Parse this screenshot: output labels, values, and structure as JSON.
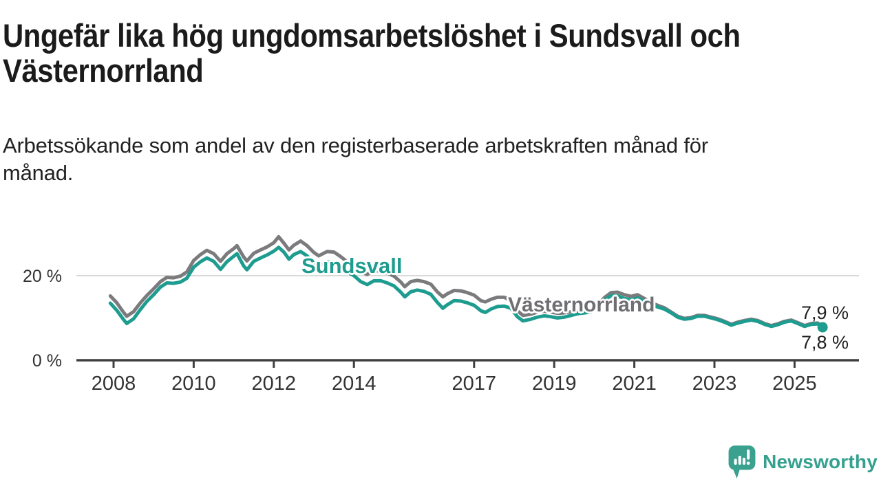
{
  "header": {
    "title": "Ungefär lika hög ungdomsarbetslöshet i Sundsvall och\nVästernorrland",
    "subtitle": "Arbetssökande som andel av den registerbaserade arbetskraften månad för\nmånad."
  },
  "footer": {
    "brand": "Newsworthy",
    "brand_color": "#35a08f"
  },
  "colors": {
    "sundsvall": "#1d9c8f",
    "vasternorrland": "#7b7b7e",
    "axis": "#404040",
    "gridline": "#d9d9d9",
    "tick_text": "#333333"
  },
  "chart_data": {
    "type": "line",
    "title": "Ungefär lika hög ungdomsarbetslöshet i Sundsvall och Västernorrland",
    "xlabel": "",
    "ylabel": "",
    "x_ticks": [
      2008,
      2010,
      2012,
      2014,
      2017,
      2019,
      2021,
      2023,
      2025
    ],
    "y_ticks": [
      {
        "value": 20,
        "label": "20 %"
      },
      {
        "value": 0,
        "label": "0 %"
      }
    ],
    "x_range": [
      2007.9,
      2026.1
    ],
    "ylim": [
      0,
      30
    ],
    "gridlines": [
      20
    ],
    "legend_position": "inline-labels-on-lines",
    "series": [
      {
        "name": "Västernorrland",
        "color": "#7b7b7e",
        "end_label": "7,9 %",
        "end_value": 7.9,
        "end_dot_radius": 5,
        "points": [
          [
            2007.92,
            15.2
          ],
          [
            2008.08,
            13.6
          ],
          [
            2008.25,
            11.3
          ],
          [
            2008.33,
            10.4
          ],
          [
            2008.5,
            11.5
          ],
          [
            2008.67,
            13.6
          ],
          [
            2008.83,
            15.3
          ],
          [
            2009.0,
            16.9
          ],
          [
            2009.17,
            18.6
          ],
          [
            2009.33,
            19.6
          ],
          [
            2009.5,
            19.5
          ],
          [
            2009.67,
            19.9
          ],
          [
            2009.83,
            20.9
          ],
          [
            2010.0,
            23.6
          ],
          [
            2010.17,
            25.0
          ],
          [
            2010.33,
            26.0
          ],
          [
            2010.5,
            25.2
          ],
          [
            2010.67,
            23.4
          ],
          [
            2010.83,
            25.2
          ],
          [
            2011.0,
            26.4
          ],
          [
            2011.08,
            27.1
          ],
          [
            2011.25,
            24.4
          ],
          [
            2011.33,
            23.5
          ],
          [
            2011.5,
            25.3
          ],
          [
            2011.67,
            26.1
          ],
          [
            2011.83,
            26.8
          ],
          [
            2012.0,
            27.8
          ],
          [
            2012.12,
            29.2
          ],
          [
            2012.25,
            27.7
          ],
          [
            2012.38,
            26.1
          ],
          [
            2012.5,
            27.2
          ],
          [
            2012.67,
            28.2
          ],
          [
            2012.83,
            27.1
          ],
          [
            2013.0,
            25.5
          ],
          [
            2013.12,
            24.7
          ],
          [
            2013.33,
            25.7
          ],
          [
            2013.5,
            25.6
          ],
          [
            2013.67,
            24.5
          ],
          [
            2013.83,
            23.3
          ],
          [
            2014.0,
            22.3
          ],
          [
            2014.17,
            21.0
          ],
          [
            2014.33,
            20.3
          ],
          [
            2014.5,
            21.2
          ],
          [
            2014.67,
            21.1
          ],
          [
            2014.83,
            20.6
          ],
          [
            2015.0,
            19.9
          ],
          [
            2015.17,
            18.5
          ],
          [
            2015.27,
            17.4
          ],
          [
            2015.42,
            18.6
          ],
          [
            2015.58,
            18.9
          ],
          [
            2015.75,
            18.6
          ],
          [
            2015.92,
            18.0
          ],
          [
            2016.08,
            16.2
          ],
          [
            2016.22,
            15.0
          ],
          [
            2016.33,
            15.7
          ],
          [
            2016.5,
            16.5
          ],
          [
            2016.67,
            16.4
          ],
          [
            2016.83,
            16.0
          ],
          [
            2017.0,
            15.4
          ],
          [
            2017.17,
            14.1
          ],
          [
            2017.28,
            13.8
          ],
          [
            2017.42,
            14.4
          ],
          [
            2017.58,
            14.9
          ],
          [
            2017.75,
            14.9
          ],
          [
            2017.92,
            14.2
          ],
          [
            2018.08,
            11.7
          ],
          [
            2018.22,
            10.6
          ],
          [
            2018.42,
            10.9
          ],
          [
            2018.58,
            11.4
          ],
          [
            2018.75,
            11.6
          ],
          [
            2018.92,
            11.4
          ],
          [
            2019.08,
            11.1
          ],
          [
            2019.25,
            11.2
          ],
          [
            2019.42,
            11.5
          ],
          [
            2019.58,
            11.8
          ],
          [
            2019.75,
            12.0
          ],
          [
            2019.92,
            12.1
          ],
          [
            2020.08,
            13.0
          ],
          [
            2020.25,
            14.8
          ],
          [
            2020.42,
            16.0
          ],
          [
            2020.58,
            16.1
          ],
          [
            2020.75,
            15.5
          ],
          [
            2020.92,
            15.1
          ],
          [
            2021.08,
            15.5
          ],
          [
            2021.25,
            14.6
          ],
          [
            2021.42,
            13.7
          ],
          [
            2021.58,
            13.0
          ],
          [
            2021.75,
            12.4
          ],
          [
            2021.92,
            11.4
          ],
          [
            2022.08,
            10.4
          ],
          [
            2022.25,
            9.9
          ],
          [
            2022.42,
            10.1
          ],
          [
            2022.58,
            10.6
          ],
          [
            2022.75,
            10.6
          ],
          [
            2022.92,
            10.2
          ],
          [
            2023.08,
            9.8
          ],
          [
            2023.25,
            9.2
          ],
          [
            2023.42,
            8.5
          ],
          [
            2023.58,
            9.0
          ],
          [
            2023.75,
            9.4
          ],
          [
            2023.92,
            9.7
          ],
          [
            2024.08,
            9.4
          ],
          [
            2024.25,
            8.7
          ],
          [
            2024.42,
            8.2
          ],
          [
            2024.58,
            8.6
          ],
          [
            2024.75,
            9.2
          ],
          [
            2024.92,
            9.5
          ],
          [
            2025.08,
            8.9
          ],
          [
            2025.25,
            8.2
          ],
          [
            2025.42,
            8.7
          ],
          [
            2025.58,
            8.8
          ],
          [
            2025.7,
            7.9
          ]
        ]
      },
      {
        "name": "Sundsvall",
        "color": "#1d9c8f",
        "end_label": "7,8 %",
        "end_value": 7.8,
        "end_dot_radius": 7.5,
        "points": [
          [
            2007.92,
            13.5
          ],
          [
            2008.08,
            11.8
          ],
          [
            2008.25,
            9.6
          ],
          [
            2008.33,
            8.7
          ],
          [
            2008.5,
            9.8
          ],
          [
            2008.67,
            12.0
          ],
          [
            2008.83,
            13.9
          ],
          [
            2009.0,
            15.5
          ],
          [
            2009.17,
            17.3
          ],
          [
            2009.33,
            18.3
          ],
          [
            2009.5,
            18.2
          ],
          [
            2009.67,
            18.5
          ],
          [
            2009.83,
            19.4
          ],
          [
            2010.0,
            22.0
          ],
          [
            2010.17,
            23.3
          ],
          [
            2010.33,
            24.2
          ],
          [
            2010.5,
            23.4
          ],
          [
            2010.67,
            21.5
          ],
          [
            2010.83,
            23.3
          ],
          [
            2011.0,
            24.6
          ],
          [
            2011.08,
            25.2
          ],
          [
            2011.25,
            22.3
          ],
          [
            2011.33,
            21.4
          ],
          [
            2011.5,
            23.4
          ],
          [
            2011.67,
            24.2
          ],
          [
            2011.83,
            24.9
          ],
          [
            2012.0,
            25.8
          ],
          [
            2012.12,
            26.7
          ],
          [
            2012.25,
            25.6
          ],
          [
            2012.38,
            23.9
          ],
          [
            2012.5,
            25.0
          ],
          [
            2012.67,
            25.7
          ],
          [
            2012.83,
            24.7
          ],
          [
            2013.0,
            23.1
          ],
          [
            2013.12,
            22.3
          ],
          [
            2013.33,
            23.3
          ],
          [
            2013.5,
            23.1
          ],
          [
            2013.67,
            22.0
          ],
          [
            2013.83,
            20.9
          ],
          [
            2014.0,
            20.0
          ],
          [
            2014.17,
            18.6
          ],
          [
            2014.33,
            17.9
          ],
          [
            2014.5,
            18.8
          ],
          [
            2014.67,
            18.8
          ],
          [
            2014.83,
            18.3
          ],
          [
            2015.0,
            17.6
          ],
          [
            2015.17,
            16.1
          ],
          [
            2015.27,
            15.0
          ],
          [
            2015.42,
            16.2
          ],
          [
            2015.58,
            16.6
          ],
          [
            2015.75,
            16.3
          ],
          [
            2015.92,
            15.6
          ],
          [
            2016.08,
            13.7
          ],
          [
            2016.22,
            12.3
          ],
          [
            2016.33,
            13.1
          ],
          [
            2016.5,
            14.1
          ],
          [
            2016.67,
            14.0
          ],
          [
            2016.83,
            13.6
          ],
          [
            2017.0,
            13.0
          ],
          [
            2017.17,
            11.7
          ],
          [
            2017.28,
            11.3
          ],
          [
            2017.42,
            12.1
          ],
          [
            2017.58,
            12.7
          ],
          [
            2017.75,
            12.8
          ],
          [
            2017.92,
            12.3
          ],
          [
            2018.08,
            10.3
          ],
          [
            2018.22,
            9.3
          ],
          [
            2018.42,
            9.7
          ],
          [
            2018.58,
            10.2
          ],
          [
            2018.75,
            10.5
          ],
          [
            2018.92,
            10.3
          ],
          [
            2019.08,
            10.0
          ],
          [
            2019.25,
            10.2
          ],
          [
            2019.42,
            10.6
          ],
          [
            2019.58,
            11.0
          ],
          [
            2019.75,
            11.2
          ],
          [
            2019.92,
            11.4
          ],
          [
            2020.08,
            12.5
          ],
          [
            2020.25,
            14.2
          ],
          [
            2020.42,
            15.3
          ],
          [
            2020.58,
            15.2
          ],
          [
            2020.75,
            14.6
          ],
          [
            2020.92,
            14.3
          ],
          [
            2021.08,
            14.7
          ],
          [
            2021.25,
            14.0
          ],
          [
            2021.42,
            13.2
          ],
          [
            2021.58,
            12.6
          ],
          [
            2021.75,
            12.1
          ],
          [
            2021.92,
            11.2
          ],
          [
            2022.08,
            10.2
          ],
          [
            2022.25,
            9.7
          ],
          [
            2022.42,
            9.9
          ],
          [
            2022.58,
            10.4
          ],
          [
            2022.75,
            10.4
          ],
          [
            2022.92,
            10.0
          ],
          [
            2023.08,
            9.6
          ],
          [
            2023.25,
            9.0
          ],
          [
            2023.42,
            8.3
          ],
          [
            2023.58,
            8.8
          ],
          [
            2023.75,
            9.2
          ],
          [
            2023.92,
            9.5
          ],
          [
            2024.08,
            9.2
          ],
          [
            2024.25,
            8.5
          ],
          [
            2024.42,
            8.0
          ],
          [
            2024.58,
            8.4
          ],
          [
            2024.75,
            9.0
          ],
          [
            2024.92,
            9.3
          ],
          [
            2025.08,
            8.7
          ],
          [
            2025.25,
            8.0
          ],
          [
            2025.42,
            8.5
          ],
          [
            2025.58,
            8.6
          ],
          [
            2025.7,
            7.8
          ]
        ]
      }
    ]
  }
}
